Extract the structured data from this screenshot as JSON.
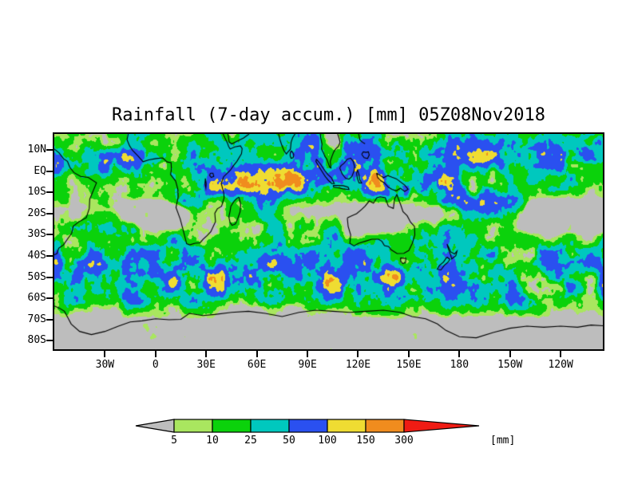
{
  "chart_data": {
    "type": "heatmap",
    "title": "Rainfall (7-day accum.) [mm] 05Z08Nov2018",
    "unit": "[mm]",
    "x_axis": {
      "tick_labels": [
        "30W",
        "0",
        "30E",
        "60E",
        "90E",
        "120E",
        "150E",
        "180",
        "150W",
        "120W"
      ],
      "tick_lons_deg_east": [
        -30,
        0,
        30,
        60,
        90,
        120,
        150,
        180,
        210,
        240
      ]
    },
    "y_axis": {
      "tick_labels": [
        "10N",
        "EQ",
        "10S",
        "20S",
        "30S",
        "40S",
        "50S",
        "60S",
        "70S",
        "80S"
      ],
      "tick_lats_deg_north": [
        10,
        0,
        -10,
        -20,
        -30,
        -40,
        -50,
        -60,
        -70,
        -80
      ]
    },
    "colorbar": {
      "tick_labels": [
        "5",
        "10",
        "25",
        "50",
        "100",
        "150",
        "300"
      ],
      "tick_values": [
        5,
        10,
        25,
        50,
        100,
        150,
        300
      ],
      "segment_colors": [
        "#bdbdbd",
        "#a9e65f",
        "#0bd20b",
        "#00c8be",
        "#2a50f0",
        "#efdc32",
        "#f08c1e",
        "#ef1c14"
      ],
      "unit_label": "[mm]",
      "position": "bottom"
    },
    "map_background_color": "#bdbdbd",
    "coastline_color": "#000000"
  }
}
